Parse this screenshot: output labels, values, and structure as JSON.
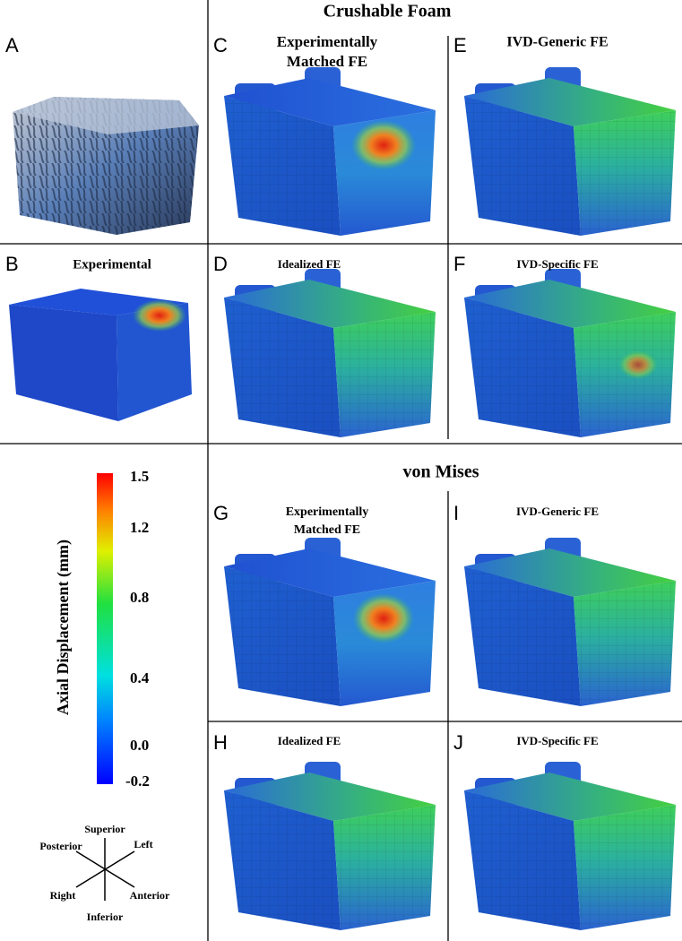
{
  "figure": {
    "headers": [
      "Crushable Foam",
      "von Mises"
    ],
    "panels": [
      {
        "letter": "A",
        "title_lines": []
      },
      {
        "letter": "B",
        "title_lines": [
          "Experimental"
        ]
      },
      {
        "letter": "C",
        "title_lines": [
          "Experimentally",
          "Matched FE"
        ]
      },
      {
        "letter": "D",
        "title_lines": [
          "Idealized FE"
        ]
      },
      {
        "letter": "E",
        "title_lines": [
          "IVD-Generic FE"
        ]
      },
      {
        "letter": "F",
        "title_lines": [
          "IVD-Specific FE"
        ]
      },
      {
        "letter": "G",
        "title_lines": [
          "Experimentally",
          "Matched FE"
        ]
      },
      {
        "letter": "H",
        "title_lines": [
          "Idealized FE"
        ]
      },
      {
        "letter": "I",
        "title_lines": [
          "IVD-Generic FE"
        ]
      },
      {
        "letter": "J",
        "title_lines": [
          "IVD-Specific FE"
        ]
      }
    ],
    "colorbar": {
      "label": "Axial Displacement (mm)",
      "ticks": [
        "1.5",
        "1.2",
        "0.8",
        "0.4",
        "0.0",
        "-0.2"
      ]
    },
    "orientation": {
      "superior": "Superior",
      "posterior": "Posterior",
      "left": "Left",
      "right": "Right",
      "anterior": "Anterior",
      "inferior": "Inferior"
    }
  }
}
